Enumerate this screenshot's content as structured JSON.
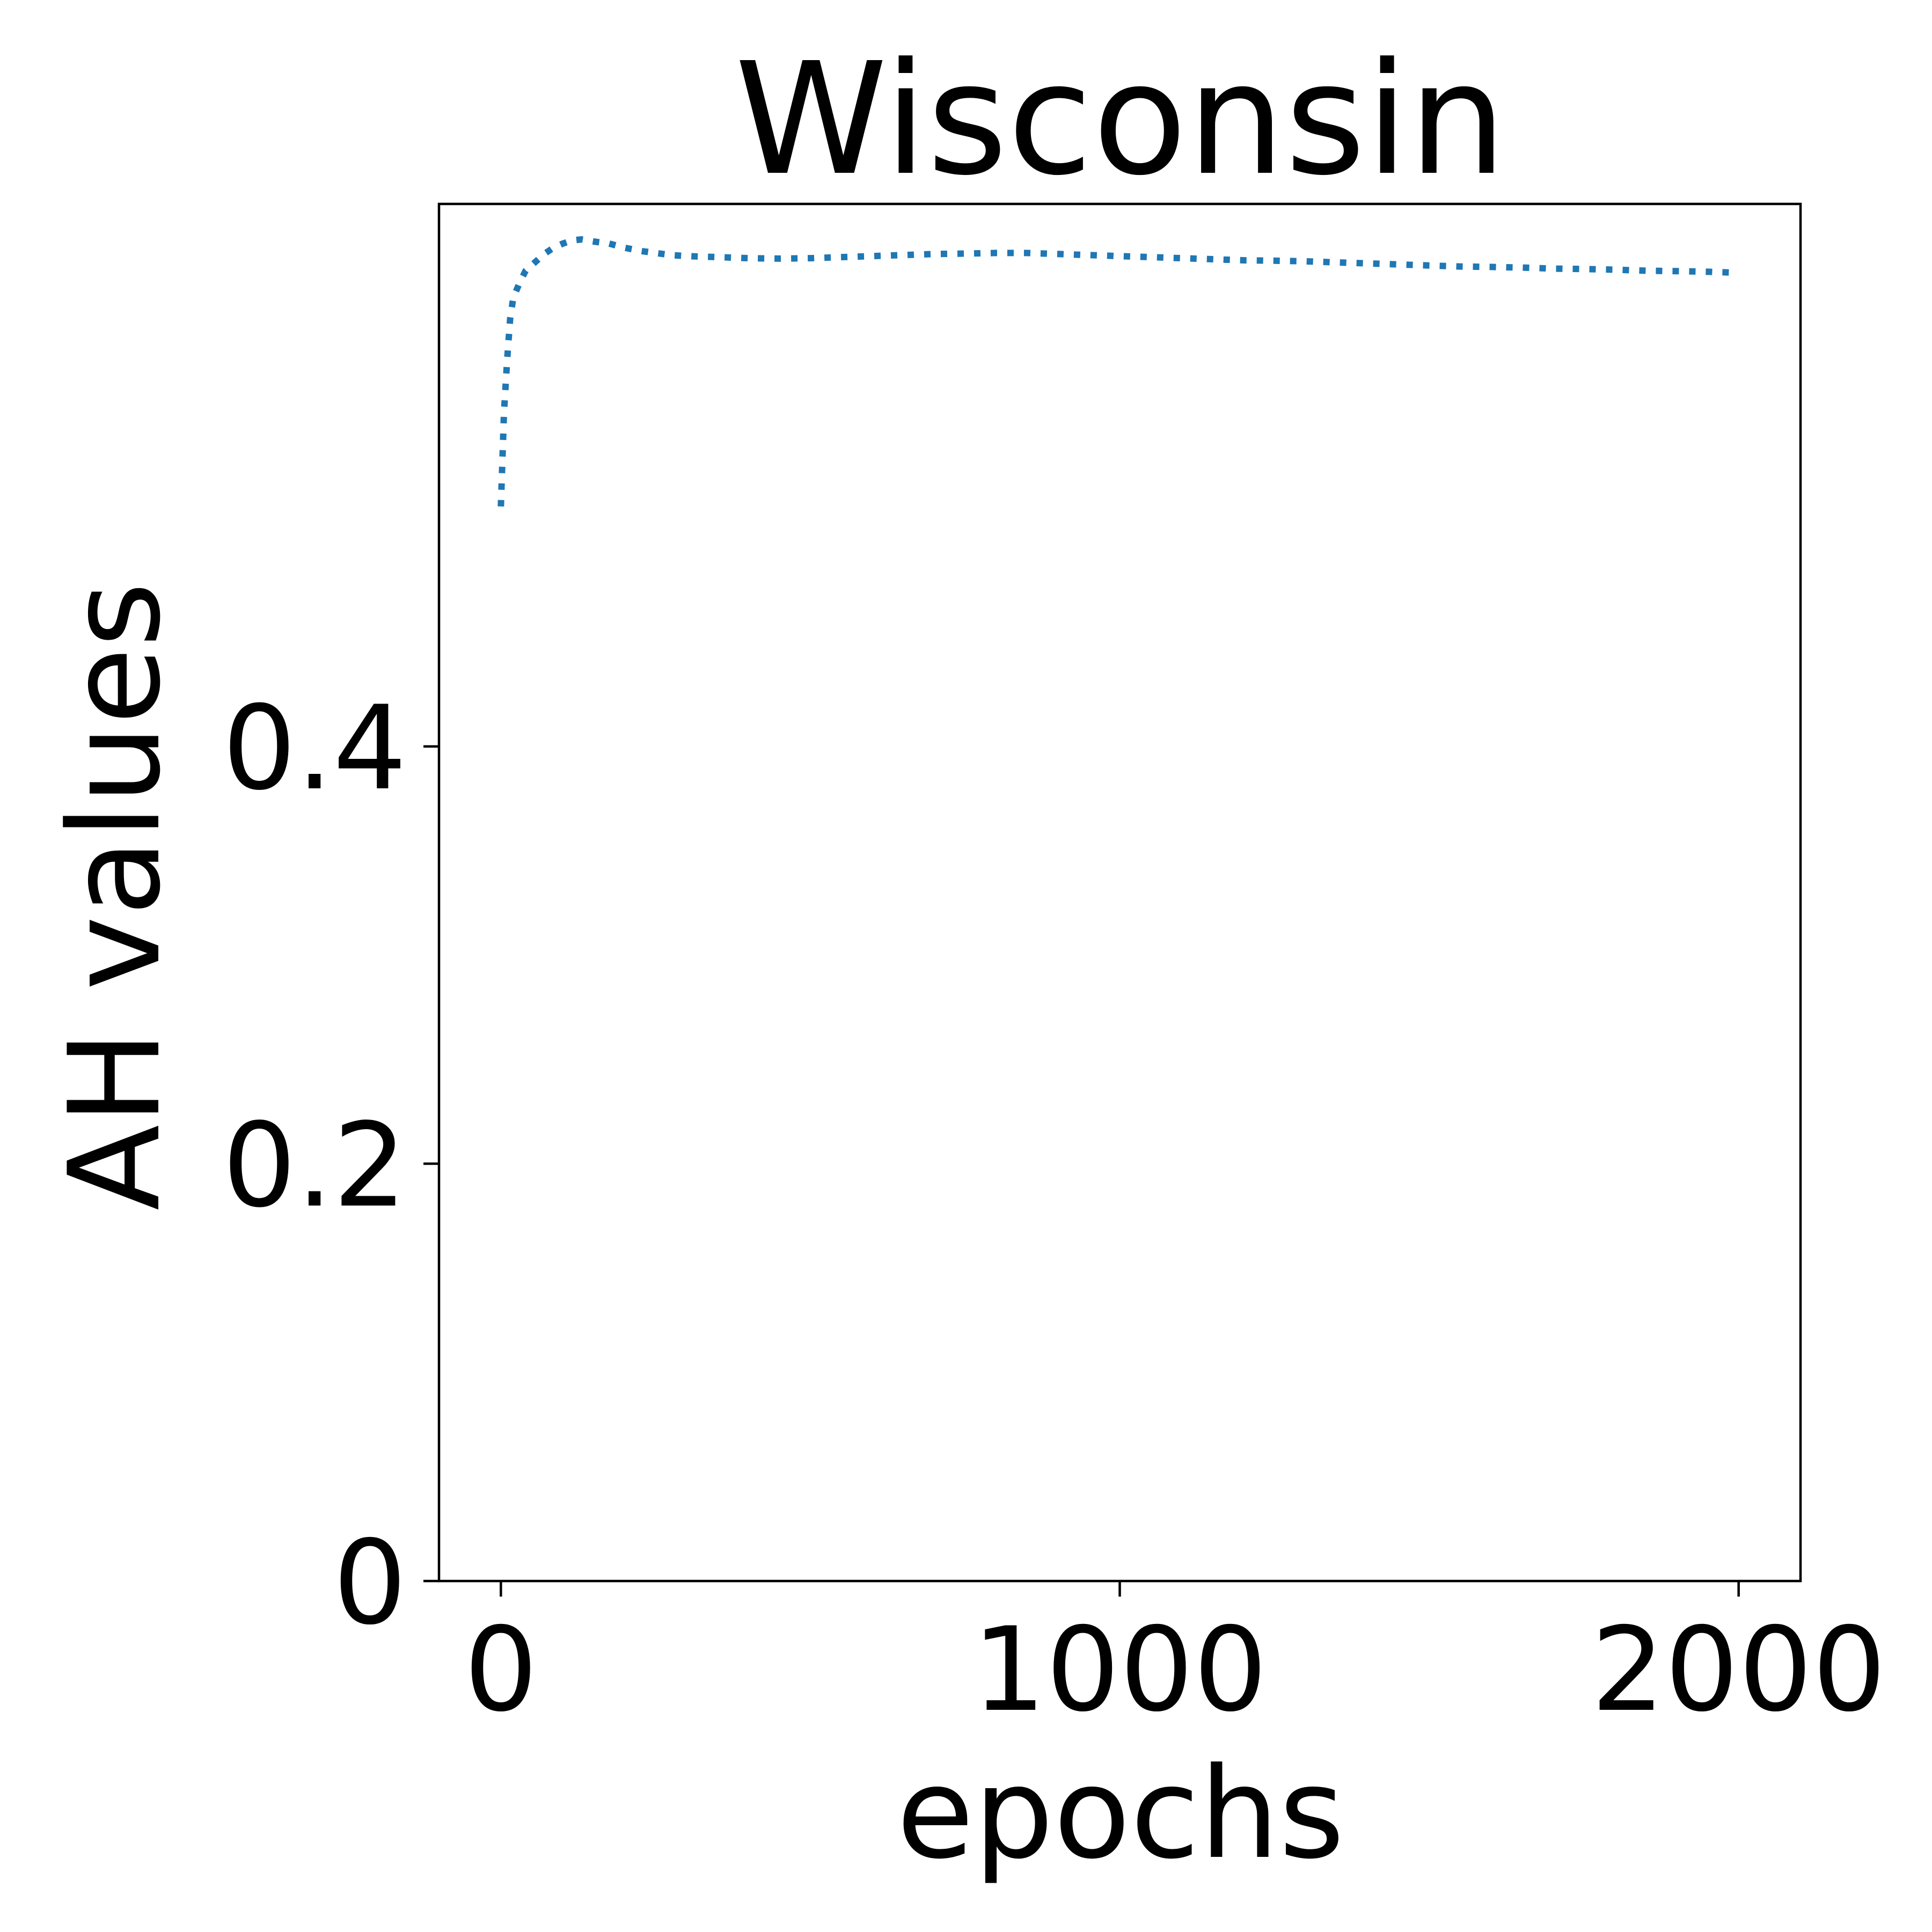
{
  "chart_data": {
    "type": "line",
    "title": "Wisconsin",
    "xlabel": "epochs",
    "ylabel": "AH values",
    "xlim": [
      -100,
      2100
    ],
    "ylim": [
      0,
      0.66
    ],
    "x_ticks": [
      0,
      1000,
      2000
    ],
    "x_tick_labels": [
      "0",
      "1000",
      "2000"
    ],
    "y_ticks": [
      0,
      0.2,
      0.4
    ],
    "y_tick_labels": [
      "0",
      "0.2",
      "0.4"
    ],
    "grid": false,
    "legend": "none",
    "line_style": "dotted",
    "series": [
      {
        "color": "#1f77b4",
        "x": [
          0,
          5,
          10,
          15,
          20,
          30,
          40,
          55,
          70,
          85,
          100,
          115,
          130,
          150,
          175,
          200,
          225,
          250,
          275,
          300,
          350,
          400,
          450,
          500,
          550,
          600,
          650,
          700,
          750,
          800,
          850,
          900,
          950,
          1000,
          1050,
          1100,
          1150,
          1200,
          1250,
          1300,
          1350,
          1400,
          1450,
          1500,
          1550,
          1600,
          1650,
          1700,
          1750,
          1800,
          1850,
          1900,
          1950,
          2000
        ],
        "values": [
          0.515,
          0.56,
          0.585,
          0.605,
          0.615,
          0.622,
          0.628,
          0.632,
          0.636,
          0.639,
          0.641,
          0.6425,
          0.643,
          0.642,
          0.641,
          0.639,
          0.6375,
          0.6365,
          0.6355,
          0.635,
          0.6345,
          0.634,
          0.6338,
          0.634,
          0.6345,
          0.635,
          0.6355,
          0.636,
          0.6362,
          0.6365,
          0.6365,
          0.636,
          0.6355,
          0.635,
          0.6345,
          0.634,
          0.6335,
          0.633,
          0.6328,
          0.6325,
          0.632,
          0.6315,
          0.631,
          0.6305,
          0.63,
          0.6298,
          0.6295,
          0.629,
          0.6288,
          0.6285,
          0.628,
          0.6278,
          0.6275,
          0.627
        ]
      }
    ]
  }
}
